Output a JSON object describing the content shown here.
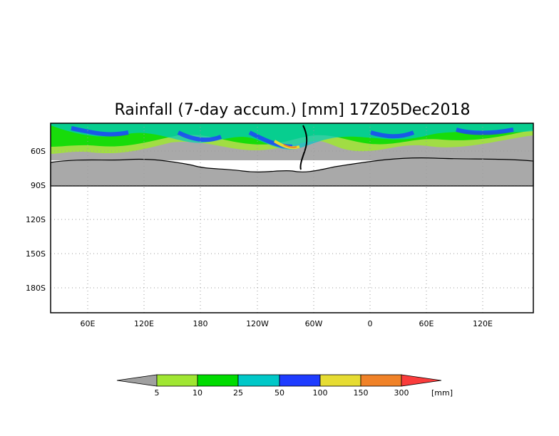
{
  "title": "Rainfall (7-day accum.) [mm] 17Z05Dec2018",
  "map": {
    "lat_labels": [
      "60S",
      "90S",
      "120S",
      "150S",
      "180S"
    ],
    "lon_labels": [
      "60E",
      "120E",
      "180",
      "120W",
      "60W",
      "0",
      "60E",
      "120E"
    ],
    "land_color": "#a9a9a9",
    "frame_color": "#000000",
    "grid_style": "dotted"
  },
  "legend": {
    "unit": "[mm]",
    "ticks": [
      "5",
      "10",
      "25",
      "50",
      "100",
      "150",
      "300"
    ],
    "colors": [
      "#a0a0a0",
      "#a0e632",
      "#00dc00",
      "#00c8c8",
      "#1e3cff",
      "#e6dc32",
      "#f08228",
      "#fa3c3c"
    ]
  }
}
